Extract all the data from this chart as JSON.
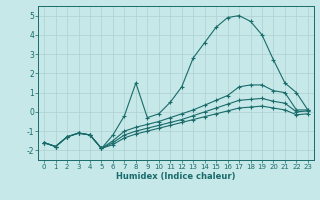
{
  "xlabel": "Humidex (Indice chaleur)",
  "background_color": "#c6e8e8",
  "grid_color": "#b0d0d0",
  "line_color": "#1a6b6b",
  "xlim": [
    -0.5,
    23.5
  ],
  "ylim": [
    -2.5,
    5.5
  ],
  "xticks": [
    0,
    1,
    2,
    3,
    4,
    5,
    6,
    7,
    8,
    9,
    10,
    11,
    12,
    13,
    14,
    15,
    16,
    17,
    18,
    19,
    20,
    21,
    22,
    23
  ],
  "yticks": [
    -2,
    -1,
    0,
    1,
    2,
    3,
    4,
    5
  ],
  "line1_x": [
    0,
    1,
    2,
    3,
    4,
    5,
    6,
    7,
    8,
    9,
    10,
    11,
    12,
    13,
    14,
    15,
    16,
    17,
    18,
    19,
    20,
    21,
    22,
    23
  ],
  "line1_y": [
    -1.6,
    -1.8,
    -1.3,
    -1.1,
    -1.2,
    -1.9,
    -1.2,
    -0.2,
    1.5,
    -0.3,
    -0.1,
    0.5,
    1.3,
    2.8,
    3.6,
    4.4,
    4.9,
    5.0,
    4.7,
    4.0,
    2.7,
    1.5,
    1.0,
    0.1
  ],
  "line2_x": [
    0,
    1,
    2,
    3,
    4,
    5,
    6,
    7,
    8,
    9,
    10,
    11,
    12,
    13,
    14,
    15,
    16,
    17,
    18,
    19,
    20,
    21,
    22,
    23
  ],
  "line2_y": [
    -1.6,
    -1.8,
    -1.3,
    -1.1,
    -1.2,
    -1.9,
    -1.5,
    -1.0,
    -0.8,
    -0.65,
    -0.5,
    -0.3,
    -0.1,
    0.1,
    0.35,
    0.6,
    0.85,
    1.3,
    1.4,
    1.4,
    1.1,
    1.0,
    0.1,
    0.1
  ],
  "line3_x": [
    0,
    1,
    2,
    3,
    4,
    5,
    6,
    7,
    8,
    9,
    10,
    11,
    12,
    13,
    14,
    15,
    16,
    17,
    18,
    19,
    20,
    21,
    22,
    23
  ],
  "line3_y": [
    -1.6,
    -1.8,
    -1.3,
    -1.1,
    -1.2,
    -1.9,
    -1.6,
    -1.2,
    -1.0,
    -0.85,
    -0.7,
    -0.55,
    -0.4,
    -0.2,
    0.0,
    0.2,
    0.4,
    0.6,
    0.65,
    0.7,
    0.55,
    0.45,
    0.0,
    0.05
  ],
  "line4_x": [
    0,
    1,
    2,
    3,
    4,
    5,
    6,
    7,
    8,
    9,
    10,
    11,
    12,
    13,
    14,
    15,
    16,
    17,
    18,
    19,
    20,
    21,
    22,
    23
  ],
  "line4_y": [
    -1.6,
    -1.8,
    -1.3,
    -1.1,
    -1.2,
    -1.9,
    -1.7,
    -1.35,
    -1.15,
    -1.0,
    -0.85,
    -0.7,
    -0.55,
    -0.4,
    -0.25,
    -0.1,
    0.05,
    0.2,
    0.25,
    0.3,
    0.2,
    0.1,
    -0.15,
    -0.1
  ]
}
